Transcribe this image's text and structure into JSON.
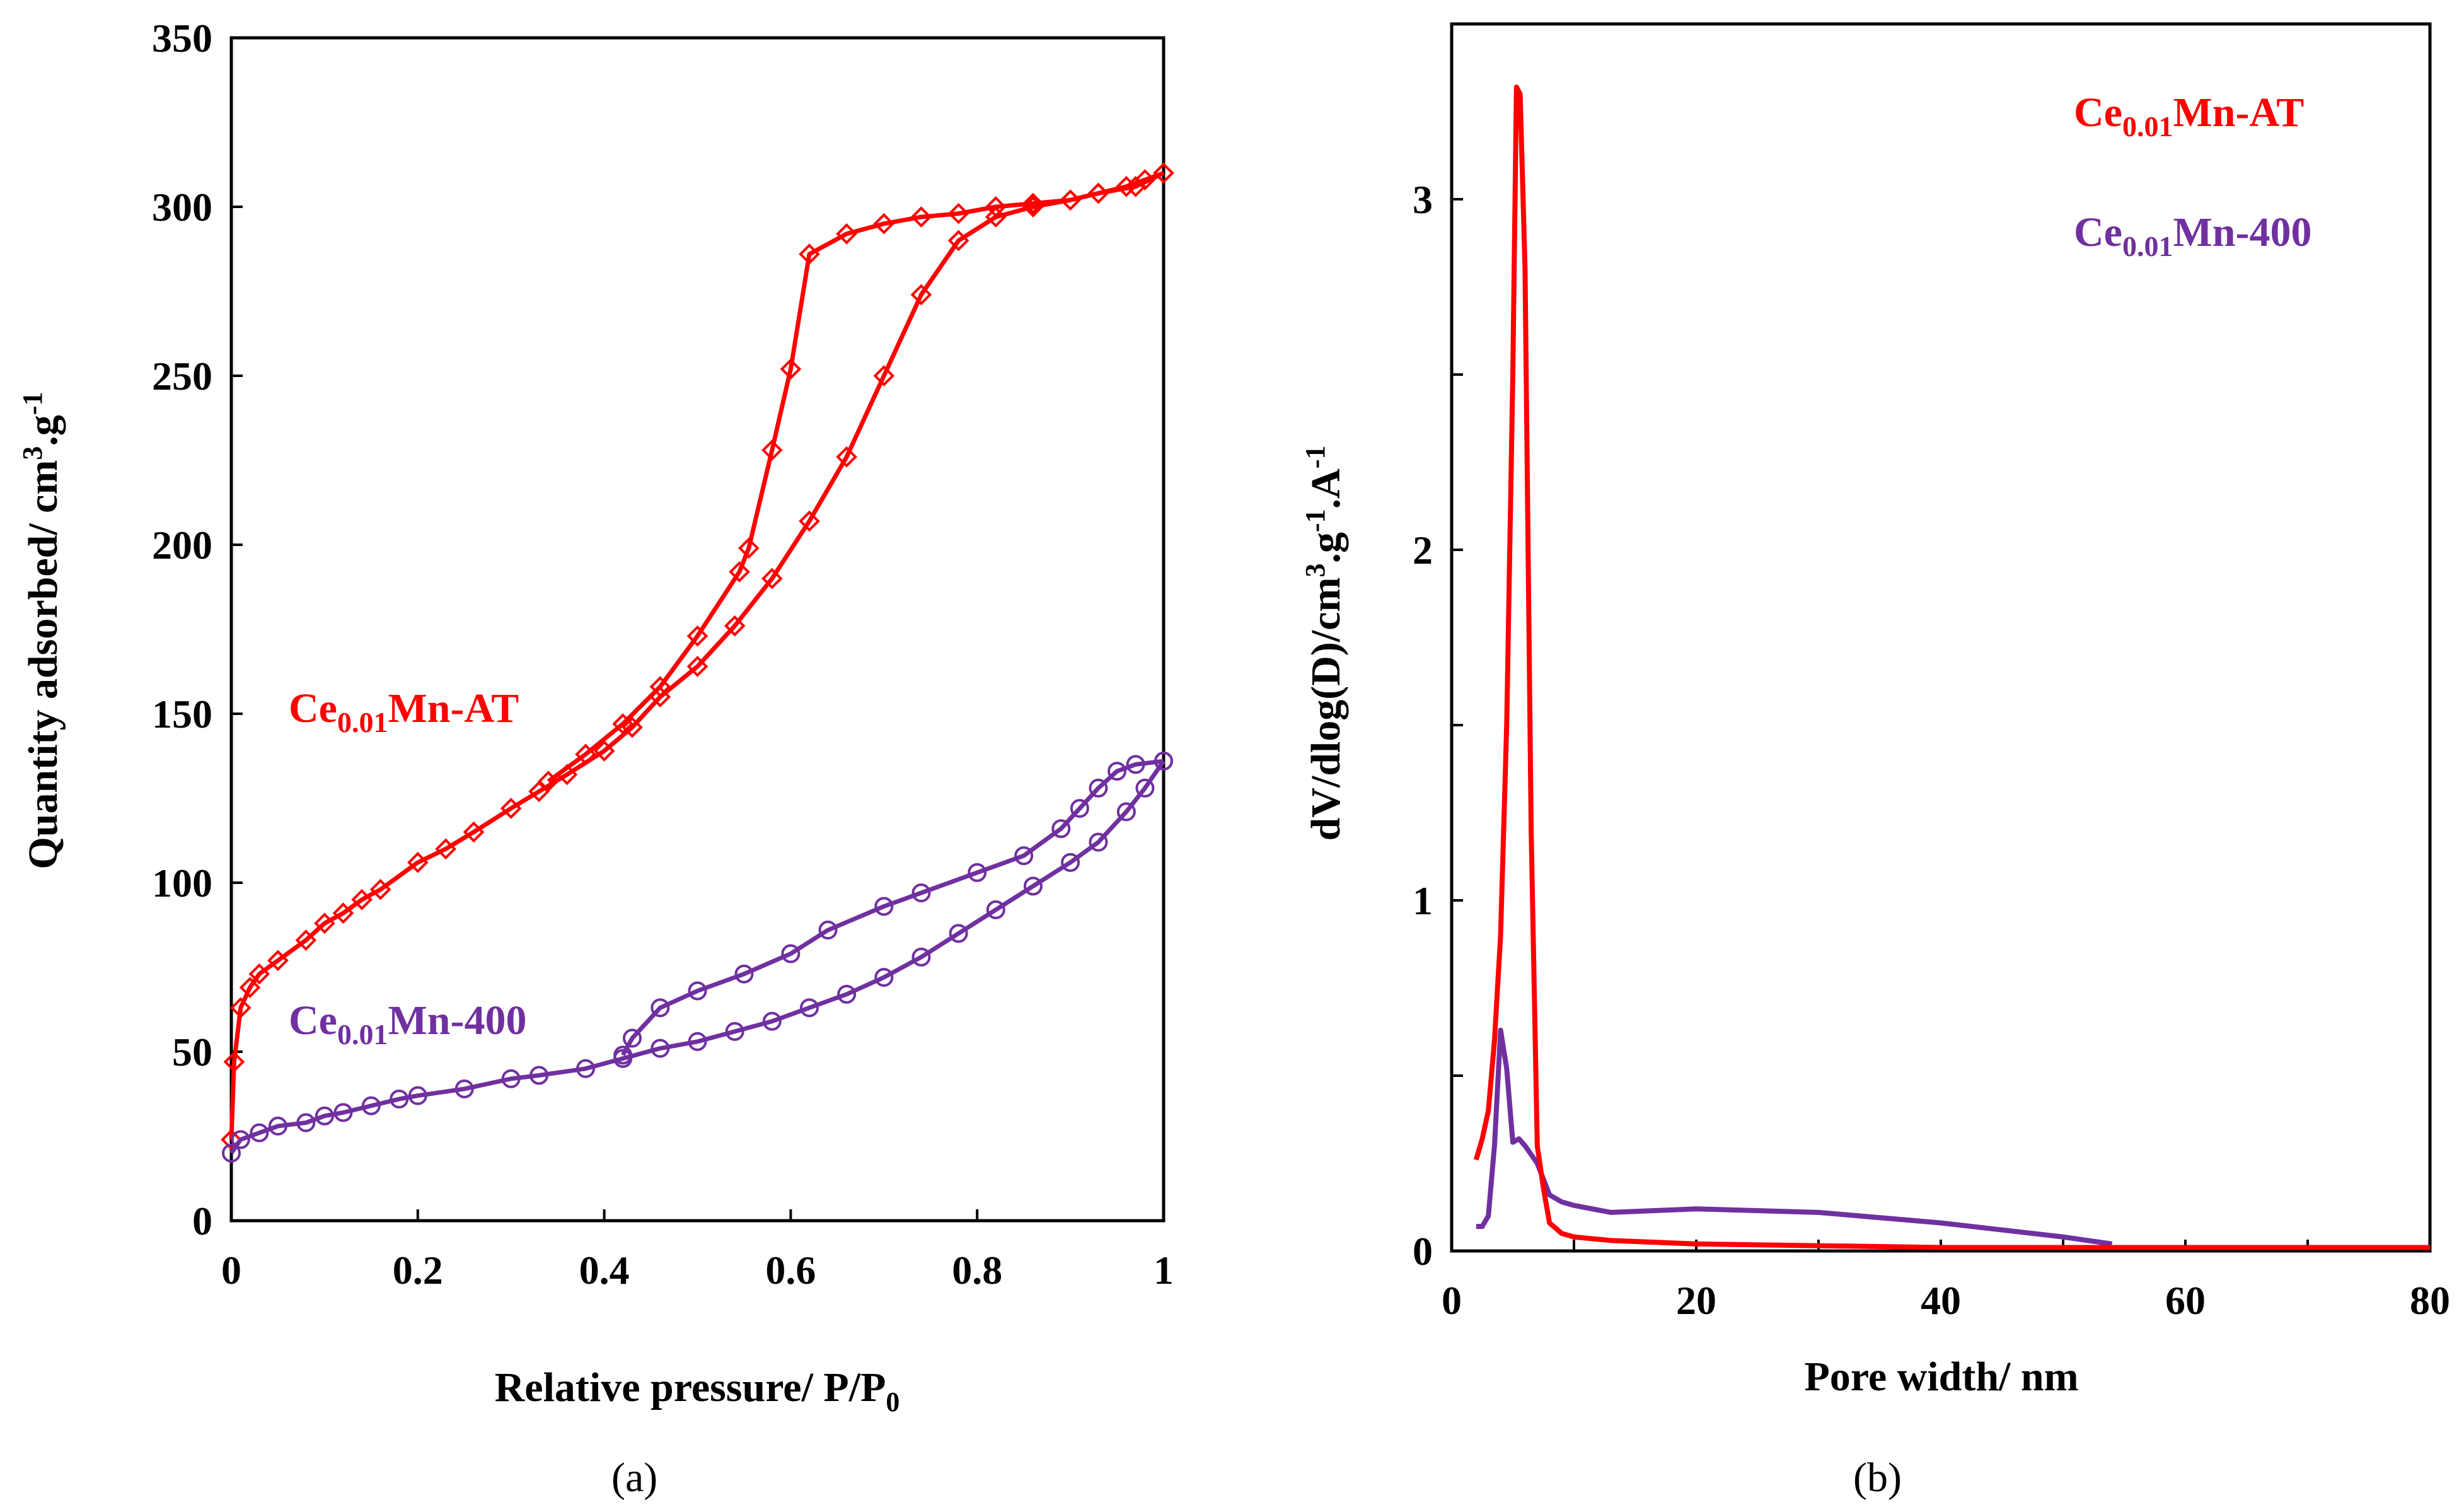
{
  "colors": {
    "at": "#ff0000",
    "c400": "#7030a0"
  },
  "chart_data": [
    {
      "type": "line",
      "panel_label": "(a)",
      "xlabel": {
        "main": "Relative pressure/ P/P",
        "sub": "0"
      },
      "ylabel": {
        "a": "Quantity adsorbed/ cm",
        "sup1": "3",
        "b": ".g",
        "sup2": "-1"
      },
      "xlim": [
        0,
        1
      ],
      "ylim": [
        0,
        350
      ],
      "xticks": [
        "0",
        "0.2",
        "0.4",
        "0.6",
        "0.8",
        "1"
      ],
      "xtick_values": [
        0,
        0.2,
        0.4,
        0.6,
        0.8,
        1
      ],
      "yticks": [
        "0",
        "50",
        "100",
        "150",
        "200",
        "250",
        "300",
        "350"
      ],
      "ytick_values": [
        0,
        50,
        100,
        150,
        200,
        250,
        300,
        350
      ],
      "series": [
        {
          "name": "Ce0.01Mn-AT",
          "label": {
            "a": "Ce",
            "sub": "0.01",
            "b": "Mn-AT"
          },
          "marker": "diamond",
          "color": "#ff0000",
          "adsorption": [
            [
              0,
              24
            ],
            [
              0.003,
              47
            ],
            [
              0.01,
              63
            ],
            [
              0.02,
              69
            ],
            [
              0.03,
              73
            ],
            [
              0.05,
              77
            ],
            [
              0.08,
              83
            ],
            [
              0.1,
              88
            ],
            [
              0.12,
              91
            ],
            [
              0.14,
              95
            ],
            [
              0.16,
              98
            ],
            [
              0.2,
              106
            ],
            [
              0.23,
              110
            ],
            [
              0.26,
              115
            ],
            [
              0.3,
              122
            ],
            [
              0.33,
              127
            ],
            [
              0.36,
              132
            ],
            [
              0.4,
              139
            ],
            [
              0.43,
              146
            ],
            [
              0.46,
              155
            ],
            [
              0.5,
              164
            ],
            [
              0.54,
              176
            ],
            [
              0.58,
              190
            ],
            [
              0.62,
              207
            ],
            [
              0.66,
              226
            ],
            [
              0.7,
              250
            ],
            [
              0.74,
              274
            ],
            [
              0.78,
              290
            ],
            [
              0.82,
              297
            ],
            [
              0.86,
              300
            ],
            [
              0.9,
              302
            ],
            [
              0.93,
              304
            ],
            [
              0.96,
              306
            ],
            [
              0.98,
              308
            ],
            [
              1.0,
              310
            ]
          ],
          "desorption": [
            [
              1,
              310
            ],
            [
              0.97,
              306
            ],
            [
              0.93,
              304
            ],
            [
              0.9,
              302
            ],
            [
              0.86,
              301
            ],
            [
              0.82,
              300
            ],
            [
              0.78,
              298
            ],
            [
              0.74,
              297
            ],
            [
              0.7,
              295
            ],
            [
              0.66,
              292
            ],
            [
              0.62,
              286
            ],
            [
              0.6,
              252
            ],
            [
              0.58,
              228
            ],
            [
              0.555,
              199
            ],
            [
              0.545,
              192
            ],
            [
              0.5,
              173
            ],
            [
              0.46,
              158
            ],
            [
              0.42,
              147
            ],
            [
              0.38,
              138
            ],
            [
              0.34,
              130
            ]
          ]
        },
        {
          "name": "Ce0.01Mn-400",
          "label": {
            "a": "Ce",
            "sub": "0.01",
            "b": "Mn-400"
          },
          "marker": "circle",
          "color": "#7030a0",
          "adsorption": [
            [
              0,
              20
            ],
            [
              0.01,
              24
            ],
            [
              0.03,
              26
            ],
            [
              0.05,
              28
            ],
            [
              0.08,
              29
            ],
            [
              0.1,
              31
            ],
            [
              0.12,
              32
            ],
            [
              0.15,
              34
            ],
            [
              0.18,
              36
            ],
            [
              0.2,
              37
            ],
            [
              0.25,
              39
            ],
            [
              0.3,
              42
            ],
            [
              0.33,
              43
            ],
            [
              0.38,
              45
            ],
            [
              0.42,
              48
            ],
            [
              0.46,
              51
            ],
            [
              0.5,
              53
            ],
            [
              0.54,
              56
            ],
            [
              0.58,
              59
            ],
            [
              0.62,
              63
            ],
            [
              0.66,
              67
            ],
            [
              0.7,
              72
            ],
            [
              0.74,
              78
            ],
            [
              0.78,
              85
            ],
            [
              0.82,
              92
            ],
            [
              0.86,
              99
            ],
            [
              0.9,
              106
            ],
            [
              0.93,
              112
            ],
            [
              0.96,
              121
            ],
            [
              0.98,
              128
            ],
            [
              1,
              136
            ]
          ],
          "desorption": [
            [
              1,
              136
            ],
            [
              0.97,
              135
            ],
            [
              0.95,
              133
            ],
            [
              0.93,
              128
            ],
            [
              0.91,
              122
            ],
            [
              0.89,
              116
            ],
            [
              0.85,
              108
            ],
            [
              0.8,
              103
            ],
            [
              0.74,
              97
            ],
            [
              0.7,
              93
            ],
            [
              0.64,
              86
            ],
            [
              0.6,
              79
            ],
            [
              0.55,
              73
            ],
            [
              0.5,
              68
            ],
            [
              0.46,
              63
            ],
            [
              0.43,
              54
            ],
            [
              0.42,
              49
            ]
          ]
        }
      ]
    },
    {
      "type": "line",
      "panel_label": "(b)",
      "xlabel": {
        "main": "Pore width/ nm"
      },
      "ylabel": {
        "a": "dV/dlog(D)/cm",
        "sup1": "3",
        "b": ".g",
        "sup2": "-1",
        "c": ".A",
        "sup3": "-1"
      },
      "xlim": [
        0,
        80
      ],
      "ylim": [
        0,
        3.5
      ],
      "xticks": [
        "0",
        "20",
        "40",
        "60",
        "80"
      ],
      "xtick_values": [
        0,
        20,
        40,
        60,
        80
      ],
      "yticks": [
        "0",
        "1",
        "2",
        "3"
      ],
      "ytick_values": [
        0,
        1,
        2,
        3
      ],
      "minor_yticks": [
        0.5,
        1.5,
        2.5
      ],
      "minor_xticks": [
        10,
        30,
        50,
        70
      ],
      "legend_position": "top-right",
      "series": [
        {
          "name": "Ce0.01Mn-AT",
          "label": {
            "a": "Ce",
            "sub": "0.01",
            "b": "Mn-AT"
          },
          "color": "#ff0000",
          "points": [
            [
              2,
              0.26
            ],
            [
              2.5,
              0.32
            ],
            [
              3,
              0.4
            ],
            [
              3.5,
              0.6
            ],
            [
              4,
              0.9
            ],
            [
              4.5,
              1.5
            ],
            [
              5,
              2.5
            ],
            [
              5.3,
              3.32
            ],
            [
              5.6,
              3.3
            ],
            [
              6,
              2.8
            ],
            [
              6.5,
              1.2
            ],
            [
              7,
              0.3
            ],
            [
              7.5,
              0.18
            ],
            [
              8,
              0.08
            ],
            [
              9,
              0.05
            ],
            [
              10,
              0.04
            ],
            [
              13,
              0.03
            ],
            [
              20,
              0.02
            ],
            [
              40,
              0.01
            ],
            [
              80,
              0.01
            ]
          ]
        },
        {
          "name": "Ce0.01Mn-400",
          "label": {
            "a": "Ce",
            "sub": "0.01",
            "b": "Mn-400"
          },
          "color": "#7030a0",
          "points": [
            [
              2,
              0.07
            ],
            [
              2.5,
              0.07
            ],
            [
              3,
              0.1
            ],
            [
              3.5,
              0.3
            ],
            [
              4,
              0.63
            ],
            [
              4.5,
              0.52
            ],
            [
              5,
              0.31
            ],
            [
              5.5,
              0.32
            ],
            [
              6,
              0.3
            ],
            [
              7,
              0.25
            ],
            [
              8,
              0.16
            ],
            [
              9,
              0.14
            ],
            [
              10,
              0.13
            ],
            [
              13,
              0.11
            ],
            [
              20,
              0.12
            ],
            [
              30,
              0.11
            ],
            [
              40,
              0.08
            ],
            [
              50,
              0.04
            ],
            [
              54,
              0.02
            ]
          ]
        }
      ]
    }
  ]
}
